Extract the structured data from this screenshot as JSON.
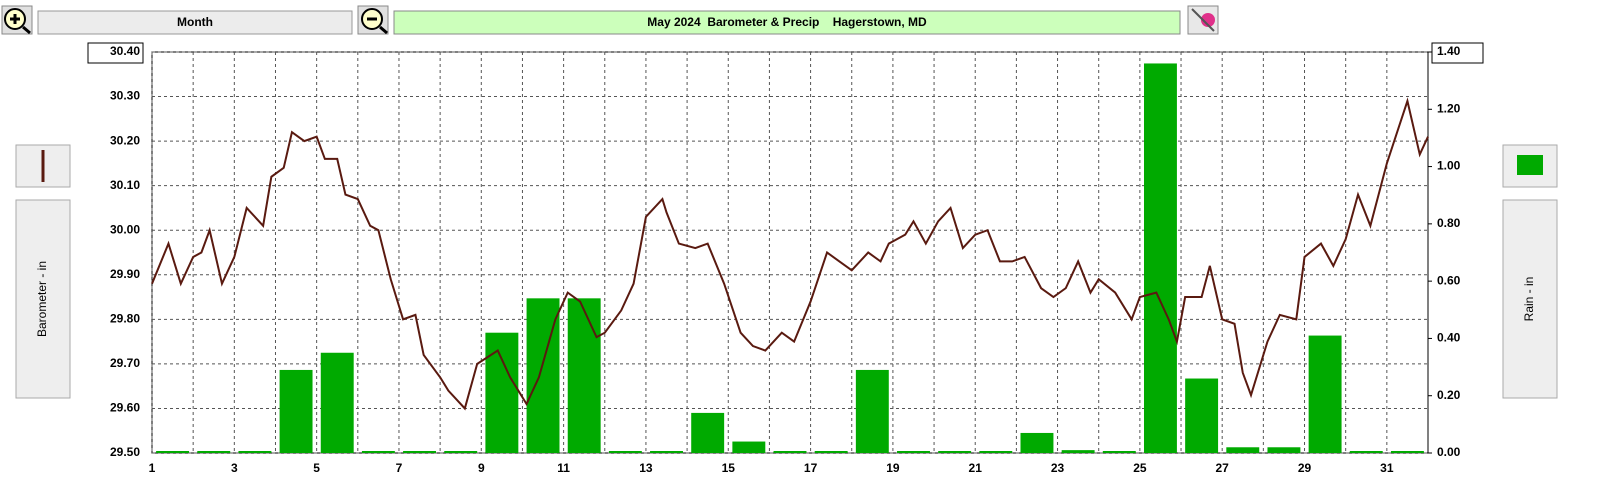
{
  "header": {
    "period": "Month"
  },
  "chart_data": {
    "type": "combo",
    "title": "May 2024  Barometer & Precip    Hagerstown, MD",
    "xlim": [
      1,
      32
    ],
    "xticks": [
      1,
      3,
      5,
      7,
      9,
      11,
      13,
      15,
      17,
      19,
      21,
      23,
      25,
      27,
      29,
      31
    ],
    "ylim": [
      29.5,
      30.4
    ],
    "yticks": [
      {
        "value": 29.5,
        "label": "29.50"
      },
      {
        "value": 29.6,
        "label": "29.60"
      },
      {
        "value": 29.7,
        "label": "29.70"
      },
      {
        "value": 29.8,
        "label": "29.80"
      },
      {
        "value": 29.9,
        "label": "29.90"
      },
      {
        "value": 30.0,
        "label": "30.00"
      },
      {
        "value": 30.1,
        "label": "30.10"
      },
      {
        "value": 30.2,
        "label": "30.20"
      },
      {
        "value": 30.3,
        "label": "30.30"
      },
      {
        "value": 30.4,
        "label": "30.40"
      }
    ],
    "y2lim": [
      0,
      1.4
    ],
    "y2ticks": [
      {
        "value": 0,
        "label": "0.00"
      },
      {
        "value": 0.2,
        "label": "0.20"
      },
      {
        "value": 0.4,
        "label": "0.40"
      },
      {
        "value": 0.6,
        "label": "0.60"
      },
      {
        "value": 0.8,
        "label": "0.80"
      },
      {
        "value": 1.0,
        "label": "1.00"
      },
      {
        "value": 1.2,
        "label": "1.20"
      },
      {
        "value": 1.4,
        "label": "1.40"
      }
    ],
    "grid": true,
    "series": [
      {
        "name": "Barometer - in",
        "type": "line",
        "color": "#5a1a10",
        "x": [
          1.0,
          1.4,
          1.7,
          2.0,
          2.2,
          2.4,
          2.7,
          3.0,
          3.3,
          3.7,
          3.9,
          4.2,
          4.4,
          4.7,
          5.0,
          5.2,
          5.5,
          5.7,
          6.0,
          6.3,
          6.5,
          6.8,
          7.1,
          7.4,
          7.6,
          8.0,
          8.2,
          8.6,
          8.9,
          9.4,
          9.7,
          10.1,
          10.4,
          10.8,
          11.1,
          11.4,
          11.8,
          12.0,
          12.4,
          12.7,
          13.0,
          13.4,
          13.5,
          13.8,
          14.2,
          14.5,
          14.9,
          15.3,
          15.6,
          15.9,
          16.3,
          16.6,
          17.0,
          17.4,
          17.7,
          18.0,
          18.4,
          18.7,
          18.9,
          19.3,
          19.5,
          19.8,
          20.1,
          20.4,
          20.7,
          21.0,
          21.3,
          21.6,
          21.9,
          22.2,
          22.6,
          22.9,
          23.2,
          23.5,
          23.8,
          24.0,
          24.4,
          24.8,
          25.0,
          25.4,
          25.7,
          25.9,
          26.1,
          26.5,
          26.7,
          27.0,
          27.3,
          27.5,
          27.7,
          28.1,
          28.4,
          28.8,
          29.0,
          29.4,
          29.7,
          30.0,
          30.3,
          30.6,
          31.0,
          31.5,
          31.8,
          32.0
        ],
        "values": [
          29.88,
          29.97,
          29.88,
          29.94,
          29.95,
          30.0,
          29.88,
          29.94,
          30.05,
          30.01,
          30.12,
          30.14,
          30.22,
          30.2,
          30.21,
          30.16,
          30.16,
          30.08,
          30.07,
          30.01,
          30.0,
          29.89,
          29.8,
          29.81,
          29.72,
          29.67,
          29.64,
          29.6,
          29.7,
          29.73,
          29.67,
          29.61,
          29.67,
          29.8,
          29.86,
          29.84,
          29.76,
          29.77,
          29.82,
          29.88,
          30.03,
          30.07,
          30.04,
          29.97,
          29.96,
          29.97,
          29.88,
          29.77,
          29.74,
          29.73,
          29.77,
          29.75,
          29.84,
          29.95,
          29.93,
          29.91,
          29.95,
          29.93,
          29.97,
          29.99,
          30.02,
          29.97,
          30.02,
          30.05,
          29.96,
          29.99,
          30.0,
          29.93,
          29.93,
          29.94,
          29.87,
          29.85,
          29.87,
          29.93,
          29.86,
          29.89,
          29.86,
          29.8,
          29.85,
          29.86,
          29.8,
          29.75,
          29.85,
          29.85,
          29.92,
          29.8,
          29.79,
          29.68,
          29.63,
          29.75,
          29.81,
          29.8,
          29.94,
          29.97,
          29.92,
          29.98,
          30.08,
          30.01,
          30.15,
          30.29,
          30.17,
          30.21
        ]
      },
      {
        "name": "Rain - in",
        "type": "bar",
        "axis": "y2",
        "color": "#00aa00",
        "x": [
          1,
          2,
          3,
          4,
          5,
          6,
          7,
          8,
          9,
          10,
          11,
          12,
          13,
          14,
          15,
          16,
          17,
          18,
          19,
          20,
          21,
          22,
          23,
          24,
          25,
          26,
          27,
          28,
          29,
          30,
          31
        ],
        "values": [
          0,
          0,
          0,
          0.29,
          0.35,
          0,
          0,
          0,
          0.42,
          0.54,
          0.54,
          0,
          0,
          0.14,
          0.04,
          0,
          0,
          0.29,
          0,
          0,
          0,
          0.07,
          0.01,
          0,
          1.36,
          0.26,
          0.02,
          0.02,
          0.41,
          0,
          0
        ]
      }
    ]
  }
}
